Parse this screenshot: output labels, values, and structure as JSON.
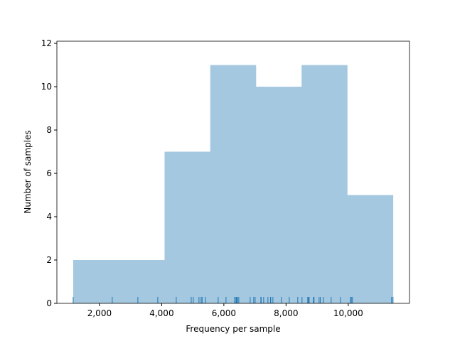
{
  "chart_data": {
    "type": "histogram",
    "xlabel": "Frequency per sample",
    "ylabel": "Number of samples",
    "bins": [
      1154,
      2623,
      4093,
      5562,
      7031,
      8500,
      9969,
      11440
    ],
    "counts": [
      2,
      2,
      7,
      11,
      10,
      11,
      5
    ],
    "color": "#a5c8e1",
    "rug": [
      1154,
      2411,
      3234,
      3874,
      4469,
      4950,
      5017,
      5200,
      5269,
      5300,
      5406,
      5817,
      6069,
      6343,
      6389,
      6400,
      6420,
      6434,
      6480,
      6846,
      6960,
      7006,
      7189,
      7200,
      7280,
      7417,
      7500,
      7509,
      7577,
      7851,
      8103,
      8377,
      8514,
      8697,
      8720,
      8743,
      8880,
      8900,
      9063,
      9100,
      9200,
      9451,
      9749,
      10069,
      10100,
      10137,
      11394,
      11440
    ],
    "rug_color": "#1f77b4",
    "xlim": [
      630,
      11970
    ],
    "ylim": [
      0,
      12.1
    ],
    "xticks": [
      {
        "value": 2000,
        "label": "2,000"
      },
      {
        "value": 4000,
        "label": "4,000"
      },
      {
        "value": 6000,
        "label": "6,000"
      },
      {
        "value": 8000,
        "label": "8,000"
      },
      {
        "value": 10000,
        "label": "10,000"
      }
    ],
    "yticks": [
      0,
      2,
      4,
      6,
      8,
      10,
      12
    ]
  }
}
